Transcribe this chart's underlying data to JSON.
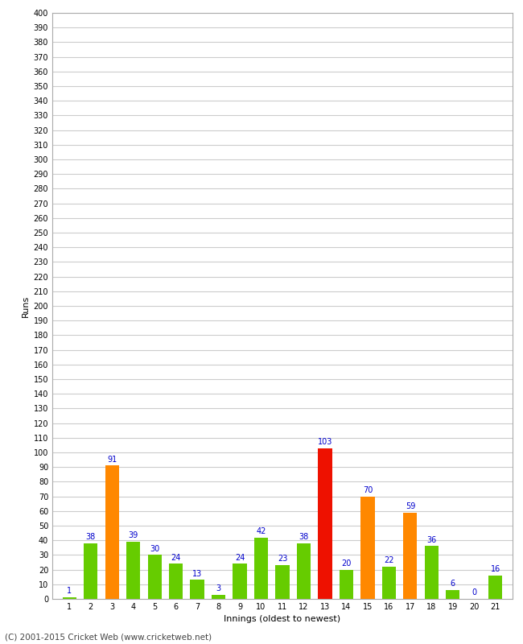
{
  "title": "",
  "xlabel": "Innings (oldest to newest)",
  "ylabel": "Runs",
  "categories": [
    1,
    2,
    3,
    4,
    5,
    6,
    7,
    8,
    9,
    10,
    11,
    12,
    13,
    14,
    15,
    16,
    17,
    18,
    19,
    20,
    21
  ],
  "values": [
    1,
    38,
    91,
    39,
    30,
    24,
    13,
    3,
    24,
    42,
    23,
    38,
    103,
    20,
    70,
    22,
    59,
    36,
    6,
    0,
    16
  ],
  "colors": [
    "#66cc00",
    "#66cc00",
    "#ff8800",
    "#66cc00",
    "#66cc00",
    "#66cc00",
    "#66cc00",
    "#66cc00",
    "#66cc00",
    "#66cc00",
    "#66cc00",
    "#66cc00",
    "#ee1100",
    "#66cc00",
    "#ff8800",
    "#66cc00",
    "#ff8800",
    "#66cc00",
    "#66cc00",
    "#66cc00",
    "#66cc00"
  ],
  "ylim": [
    0,
    400
  ],
  "ytick_step": 10,
  "label_color": "#0000cc",
  "background_color": "#ffffff",
  "grid_color": "#cccccc",
  "footer": "(C) 2001-2015 Cricket Web (www.cricketweb.net)"
}
